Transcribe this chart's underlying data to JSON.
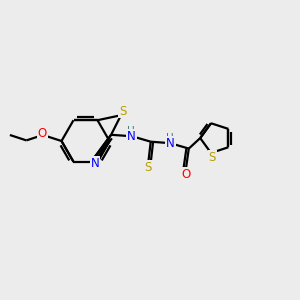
{
  "bg_color": "#ececec",
  "bond_color": "#000000",
  "bond_width": 1.6,
  "atom_colors": {
    "S": "#b8a000",
    "N": "#0000ff",
    "O": "#ff0000",
    "H": "#3a8080",
    "C": "#000000"
  },
  "font_size": 8.5,
  "fig_size": [
    3.0,
    3.0
  ],
  "dpi": 100,
  "xlim": [
    0,
    10
  ],
  "ylim": [
    0,
    10
  ]
}
